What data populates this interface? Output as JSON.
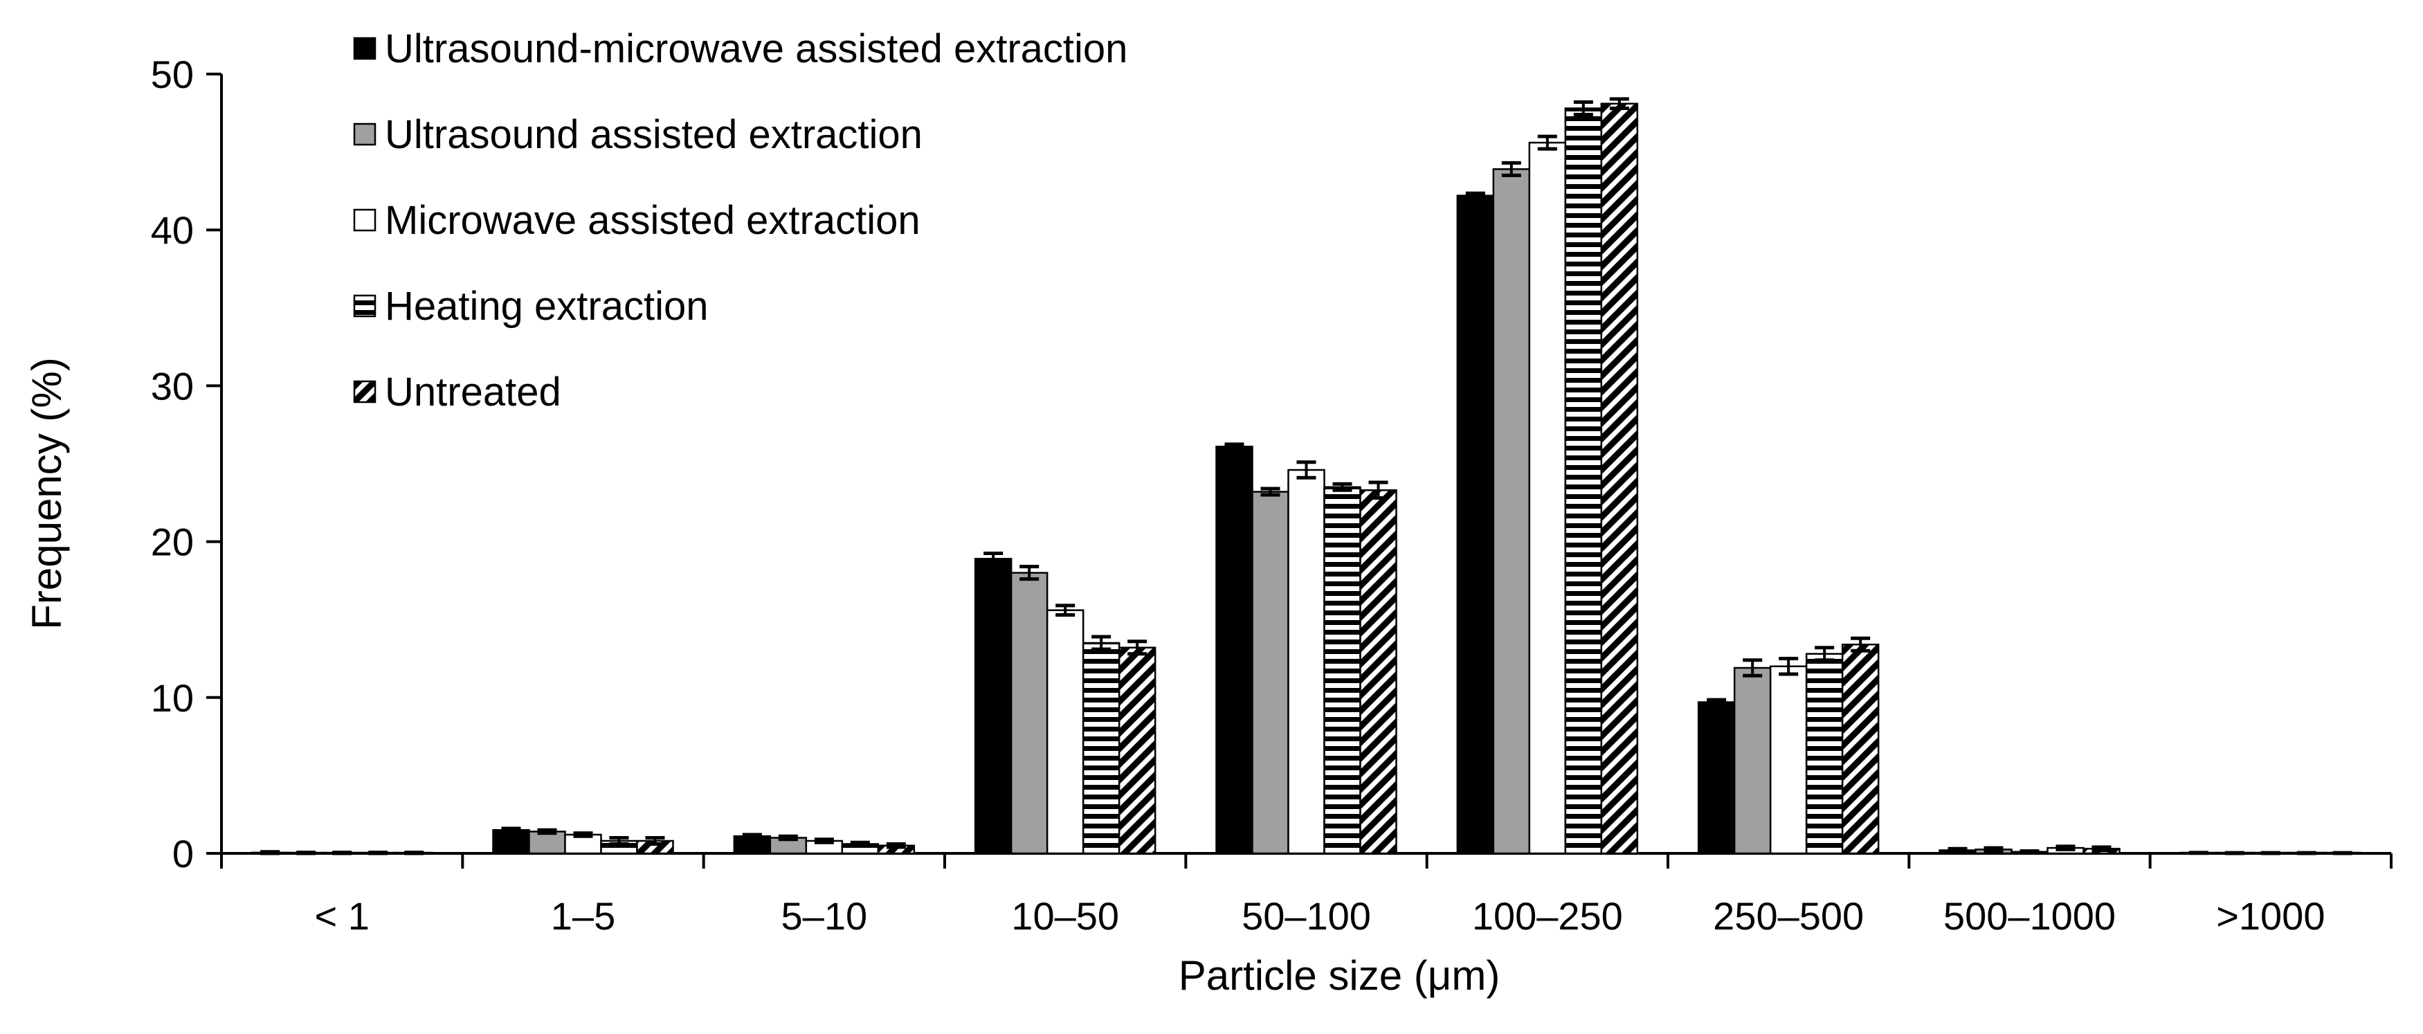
{
  "chart_data": {
    "type": "bar",
    "xlabel": "Particle size (μm)",
    "ylabel": "Frequency (%)",
    "ylim": [
      0,
      50
    ],
    "yticks": [
      "0",
      "10",
      "20",
      "30",
      "40",
      "50"
    ],
    "categories": [
      "< 1",
      "1–5",
      "5–10",
      "10–50",
      "50–100",
      "100–250",
      "250–500",
      "500–1000",
      ">1000"
    ],
    "legend_position": "top-left",
    "grid": false,
    "series": [
      {
        "name": "Ultrasound-microwave assisted extraction",
        "fill": "solid-black",
        "values": [
          0.05,
          1.5,
          1.1,
          18.9,
          26.1,
          42.2,
          9.7,
          0.2,
          0.03
        ],
        "errors": [
          0.05,
          0.1,
          0.1,
          0.35,
          0.15,
          0.15,
          0.15,
          0.1,
          0.02
        ]
      },
      {
        "name": "Ultrasound assisted extraction",
        "fill": "gray",
        "values": [
          0.03,
          1.4,
          1.0,
          18.0,
          23.2,
          43.9,
          11.9,
          0.25,
          0.02
        ],
        "errors": [
          0.03,
          0.1,
          0.1,
          0.4,
          0.2,
          0.4,
          0.5,
          0.1,
          0.02
        ]
      },
      {
        "name": "Microwave assisted extraction",
        "fill": "white",
        "values": [
          0.03,
          1.2,
          0.8,
          15.6,
          24.6,
          45.6,
          12.0,
          0.1,
          0.02
        ],
        "errors": [
          0.03,
          0.1,
          0.1,
          0.3,
          0.5,
          0.4,
          0.5,
          0.05,
          0.02
        ]
      },
      {
        "name": "Heating extraction",
        "fill": "horizontal-stripes",
        "values": [
          0.03,
          0.8,
          0.6,
          13.5,
          23.5,
          47.8,
          12.8,
          0.35,
          0.02
        ],
        "errors": [
          0.03,
          0.2,
          0.1,
          0.4,
          0.2,
          0.4,
          0.4,
          0.1,
          0.02
        ]
      },
      {
        "name": "Untreated",
        "fill": "diagonal-hatch",
        "values": [
          0.03,
          0.8,
          0.5,
          13.2,
          23.3,
          48.1,
          13.4,
          0.3,
          0.02
        ],
        "errors": [
          0.03,
          0.2,
          0.1,
          0.4,
          0.5,
          0.3,
          0.4,
          0.1,
          0.02
        ]
      }
    ],
    "colors": {
      "axis": "#000000",
      "solid": "#000000",
      "gray": "#a0a0a0",
      "white": "#ffffff",
      "stroke": "#000000"
    }
  }
}
